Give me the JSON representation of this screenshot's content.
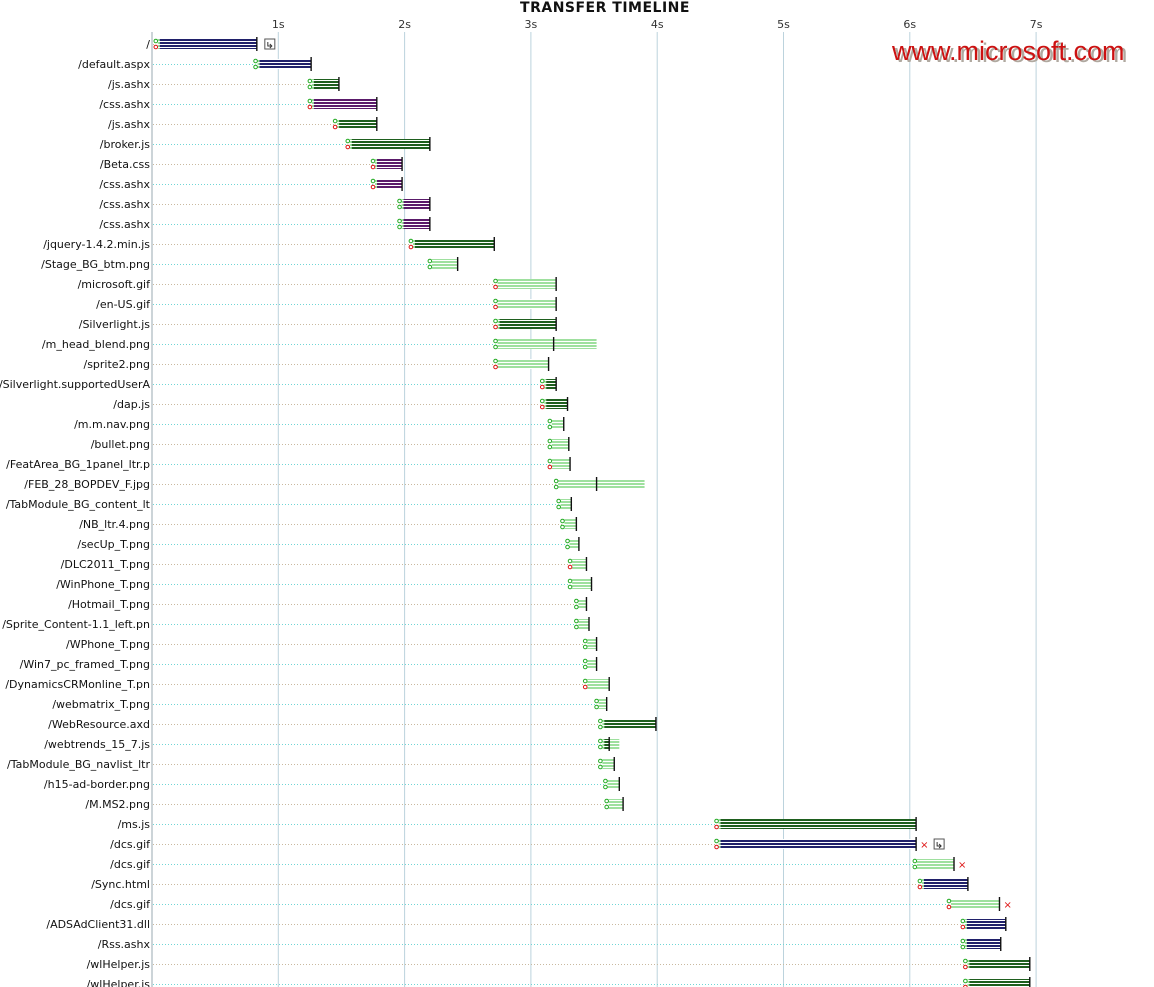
{
  "colors": {
    "grid": "#bcd3dd",
    "dotted_leader": "#c9b9a0",
    "leader_cyan": "#6fd6d6",
    "download_green": "#1e5f1e",
    "download_navy": "#20206a",
    "download_purple": "#5a1a6a",
    "light_green": "#9ee09e",
    "dot_red": "#dd1111",
    "dot_green": "#22aa22",
    "watermark": "#cc1111"
  },
  "watermark": "www.microsoft.com",
  "chart_data": {
    "type": "timeline",
    "title": "TRANSFER TIMELINE",
    "xlabel": "",
    "ylabel": "",
    "x_unit": "s",
    "xlim": [
      0,
      7.9
    ],
    "x_ticks": [
      "1s",
      "2s",
      "3s",
      "4s",
      "5s",
      "6s",
      "7s"
    ],
    "grid": true,
    "rows": [
      {
        "label": "/",
        "start": 0.03,
        "end": 0.83,
        "mid": 0.83,
        "style": "navy",
        "dot": "red",
        "end_icon": "redirect-icon"
      },
      {
        "label": "/default.aspx",
        "start": 0.82,
        "end": 1.26,
        "mid": 1.26,
        "style": "navy",
        "dot": "green"
      },
      {
        "label": "/js.ashx",
        "start": 1.25,
        "end": 1.48,
        "mid": 1.48,
        "style": "green",
        "dot": "green"
      },
      {
        "label": "/css.ashx",
        "start": 1.25,
        "end": 1.78,
        "mid": 1.78,
        "style": "purple",
        "dot": "red"
      },
      {
        "label": "/js.ashx",
        "start": 1.45,
        "end": 1.78,
        "mid": 1.78,
        "style": "green",
        "dot": "red"
      },
      {
        "label": "/broker.js",
        "start": 1.55,
        "end": 2.2,
        "mid": 2.2,
        "style": "green",
        "dot": "red"
      },
      {
        "label": "/Beta.css",
        "start": 1.75,
        "end": 1.98,
        "mid": 1.98,
        "style": "purple",
        "dot": "red"
      },
      {
        "label": "/css.ashx",
        "start": 1.75,
        "end": 1.98,
        "mid": 1.98,
        "style": "purple",
        "dot": "red"
      },
      {
        "label": "/css.ashx",
        "start": 1.96,
        "end": 2.2,
        "mid": 2.2,
        "style": "purple",
        "dot": "green"
      },
      {
        "label": "/css.ashx",
        "start": 1.96,
        "end": 2.2,
        "mid": 2.2,
        "style": "purple",
        "dot": "green"
      },
      {
        "label": "/jquery-1.4.2.min.js",
        "start": 2.05,
        "end": 2.71,
        "mid": 2.71,
        "style": "green",
        "dot": "red"
      },
      {
        "label": "/Stage_BG_btm.png",
        "start": 2.2,
        "end": 2.42,
        "mid": 2.42,
        "style": "light",
        "dot": "green"
      },
      {
        "label": "/microsoft.gif",
        "start": 2.72,
        "end": 3.2,
        "mid": 3.2,
        "style": "light",
        "dot": "red"
      },
      {
        "label": "/en-US.gif",
        "start": 2.72,
        "end": 3.2,
        "mid": 3.2,
        "style": "light",
        "dot": "red"
      },
      {
        "label": "/Silverlight.js",
        "start": 2.72,
        "end": 3.2,
        "mid": 3.2,
        "style": "green",
        "dot": "red"
      },
      {
        "label": "/m_head_blend.png",
        "start": 2.72,
        "end": 3.52,
        "mid": 3.18,
        "style": "light",
        "dot": "green"
      },
      {
        "label": "/sprite2.png",
        "start": 2.72,
        "end": 3.14,
        "mid": 3.14,
        "style": "light",
        "dot": "red"
      },
      {
        "label": "/Silverlight.supportedUserA",
        "start": 3.09,
        "end": 3.2,
        "mid": 3.2,
        "style": "green",
        "dot": "red"
      },
      {
        "label": "/dap.js",
        "start": 3.09,
        "end": 3.29,
        "mid": 3.29,
        "style": "green",
        "dot": "red"
      },
      {
        "label": "/m.m.nav.png",
        "start": 3.15,
        "end": 3.26,
        "mid": 3.26,
        "style": "light",
        "dot": "green"
      },
      {
        "label": "/bullet.png",
        "start": 3.15,
        "end": 3.3,
        "mid": 3.3,
        "style": "light",
        "dot": "green"
      },
      {
        "label": "/FeatArea_BG_1panel_ltr.p",
        "start": 3.15,
        "end": 3.31,
        "mid": 3.31,
        "style": "light",
        "dot": "red"
      },
      {
        "label": "/FEB_28_BOPDEV_F.jpg",
        "start": 3.2,
        "end": 3.9,
        "mid": 3.52,
        "style": "light",
        "dot": "green"
      },
      {
        "label": "/TabModule_BG_content_lt",
        "start": 3.22,
        "end": 3.32,
        "mid": 3.32,
        "style": "light",
        "dot": "green"
      },
      {
        "label": "/NB_ltr.4.png",
        "start": 3.25,
        "end": 3.36,
        "mid": 3.36,
        "style": "light",
        "dot": "green"
      },
      {
        "label": "/secUp_T.png",
        "start": 3.29,
        "end": 3.38,
        "mid": 3.38,
        "style": "light",
        "dot": "green"
      },
      {
        "label": "/DLC2011_T.png",
        "start": 3.31,
        "end": 3.44,
        "mid": 3.44,
        "style": "light",
        "dot": "red"
      },
      {
        "label": "/WinPhone_T.png",
        "start": 3.31,
        "end": 3.48,
        "mid": 3.48,
        "style": "light",
        "dot": "green"
      },
      {
        "label": "/Hotmail_T.png",
        "start": 3.36,
        "end": 3.44,
        "mid": 3.44,
        "style": "light",
        "dot": "green"
      },
      {
        "label": "/Sprite_Content-1.1_left.pn",
        "start": 3.36,
        "end": 3.46,
        "mid": 3.46,
        "style": "light",
        "dot": "green"
      },
      {
        "label": "/WPhone_T.png",
        "start": 3.43,
        "end": 3.52,
        "mid": 3.52,
        "style": "light",
        "dot": "green"
      },
      {
        "label": "/Win7_pc_framed_T.png",
        "start": 3.43,
        "end": 3.52,
        "mid": 3.52,
        "style": "light",
        "dot": "green"
      },
      {
        "label": "/DynamicsCRMonline_T.pn",
        "start": 3.43,
        "end": 3.62,
        "mid": 3.62,
        "style": "light",
        "dot": "red"
      },
      {
        "label": "/webmatrix_T.png",
        "start": 3.52,
        "end": 3.6,
        "mid": 3.6,
        "style": "light",
        "dot": "green"
      },
      {
        "label": "/WebResource.axd",
        "start": 3.55,
        "end": 3.99,
        "mid": 3.99,
        "style": "green",
        "dot": "green"
      },
      {
        "label": "/webtrends_15_7.js",
        "start": 3.55,
        "end": 3.7,
        "mid": 3.62,
        "style": "green",
        "dot": "green"
      },
      {
        "label": "/TabModule_BG_navlist_ltr",
        "start": 3.55,
        "end": 3.66,
        "mid": 3.66,
        "style": "light",
        "dot": "green"
      },
      {
        "label": "/h15-ad-border.png",
        "start": 3.59,
        "end": 3.7,
        "mid": 3.7,
        "style": "light",
        "dot": "green"
      },
      {
        "label": "/M.MS2.png",
        "start": 3.6,
        "end": 3.73,
        "mid": 3.73,
        "style": "light",
        "dot": "green"
      },
      {
        "label": "/ms.js",
        "start": 4.47,
        "end": 6.05,
        "mid": 6.05,
        "style": "green",
        "dot": "red"
      },
      {
        "label": "/dcs.gif",
        "start": 4.47,
        "end": 6.05,
        "mid": 6.05,
        "style": "navy",
        "dot": "red",
        "end_icon": "redirect-icon",
        "end_x": true
      },
      {
        "label": "/dcs.gif",
        "start": 6.04,
        "end": 6.35,
        "mid": 6.35,
        "style": "light",
        "dot": "green",
        "end_x": true
      },
      {
        "label": "/Sync.html",
        "start": 6.08,
        "end": 6.46,
        "mid": 6.46,
        "style": "navy",
        "dot": "red"
      },
      {
        "label": "/dcs.gif",
        "start": 6.31,
        "end": 6.71,
        "mid": 6.71,
        "style": "light",
        "dot": "red",
        "end_x": true
      },
      {
        "label": "/ADSAdClient31.dll",
        "start": 6.42,
        "end": 6.76,
        "mid": 6.76,
        "style": "navy",
        "dot": "red"
      },
      {
        "label": "/Rss.ashx",
        "start": 6.42,
        "end": 6.72,
        "mid": 6.72,
        "style": "navy",
        "dot": "green"
      },
      {
        "label": "/wlHelper.js",
        "start": 6.44,
        "end": 6.95,
        "mid": 6.95,
        "style": "green",
        "dot": "red"
      },
      {
        "label": "/wlHelper.js",
        "start": 6.44,
        "end": 6.95,
        "mid": 6.95,
        "style": "green",
        "dot": "red"
      }
    ]
  }
}
